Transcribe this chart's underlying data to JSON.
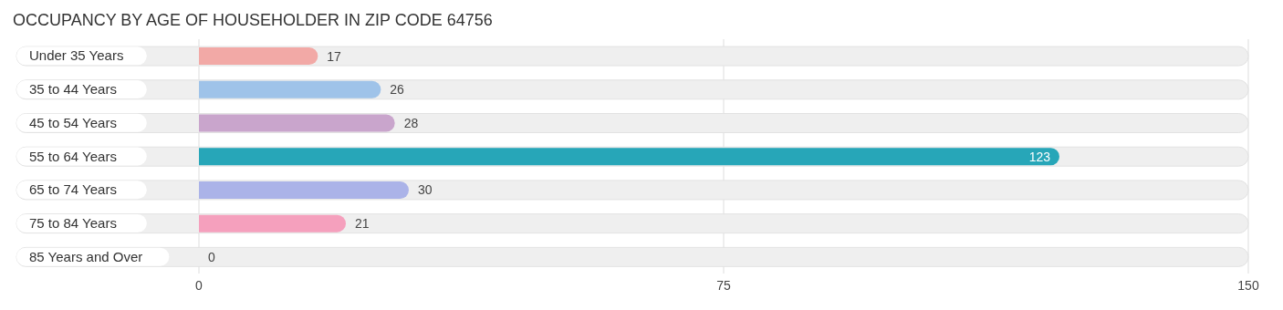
{
  "chart_data": {
    "type": "bar",
    "orientation": "horizontal",
    "title": "OCCUPANCY BY AGE OF HOUSEHOLDER IN ZIP CODE 64756",
    "categories": [
      "Under 35 Years",
      "35 to 44 Years",
      "45 to 54 Years",
      "55 to 64 Years",
      "65 to 74 Years",
      "75 to 84 Years",
      "85 Years and Over"
    ],
    "values": [
      17,
      26,
      28,
      123,
      30,
      21,
      0
    ],
    "colors": [
      "#f2a9a6",
      "#9fc3e9",
      "#c9a5cc",
      "#27a6b8",
      "#abb3e8",
      "#f5a0bd",
      "#fbcb9d"
    ],
    "xlim": [
      0,
      150
    ],
    "xticks": [
      0,
      75,
      150
    ],
    "grid": "x",
    "data_labels": true
  }
}
